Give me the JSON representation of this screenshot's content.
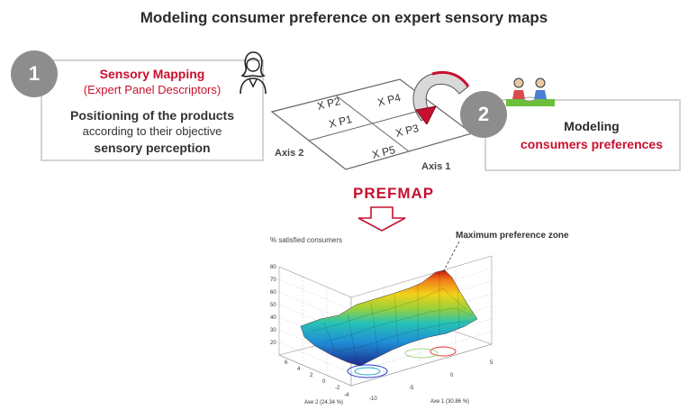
{
  "title": "Modeling consumer preference on expert sensory maps",
  "step1": {
    "number": "1",
    "heading": "Sensory Mapping",
    "subheading": "(Expert Panel Descriptors)",
    "body_line1": "Positioning of the products",
    "body_line2": "according to their objective",
    "body_line3": "sensory perception"
  },
  "step2": {
    "number": "2",
    "line1": "Modeling",
    "line2": "consumers preferences"
  },
  "map": {
    "products": [
      "X P2",
      "X P4",
      "X P1",
      "X P3",
      "X P5"
    ],
    "axis1": "Axis 1",
    "axis2": "Axis 2"
  },
  "prefmap_label": "PREFMAP",
  "plot": {
    "zlabel": "% satisfied consumers",
    "annotation": "Maximum preference zone",
    "zticks": [
      "80",
      "70",
      "60",
      "50",
      "40",
      "30",
      "20"
    ],
    "yticks": [
      "6",
      "4",
      "2",
      "0",
      "-2",
      "-4"
    ],
    "xticks": [
      "-10",
      "-5",
      "0",
      "5"
    ],
    "xlabel": "Axe 1 (30.86 %)",
    "ylabel": "Axe 2 (24.34 %)"
  },
  "colors": {
    "accent": "#c8102e",
    "circle": "#8d8d8d",
    "box_border": "#d4d4d4"
  }
}
